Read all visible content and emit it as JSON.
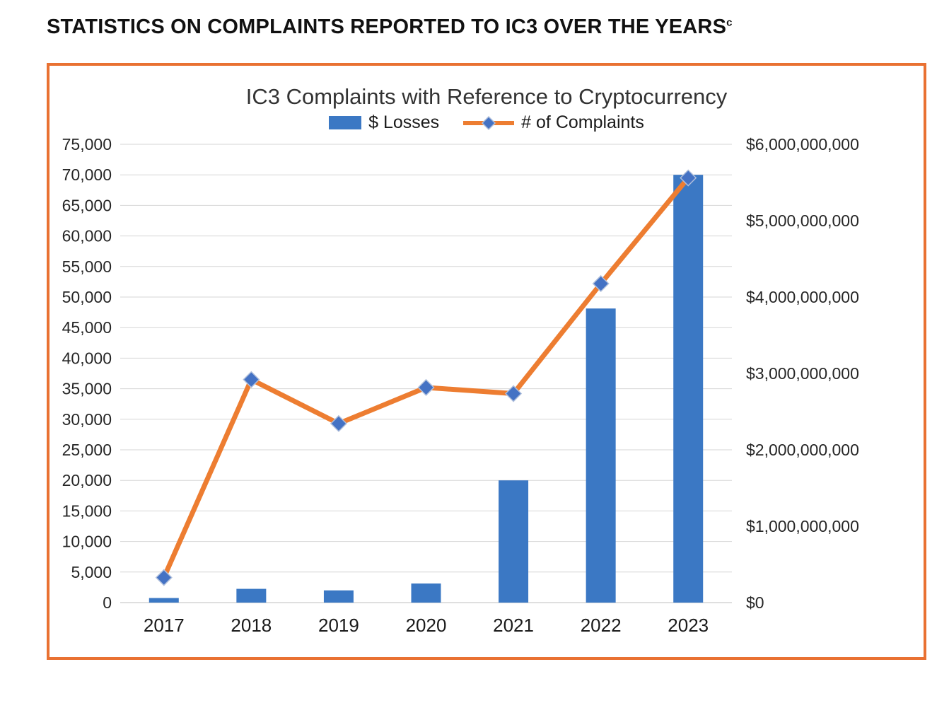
{
  "page": {
    "heading": "STATISTICS ON COMPLAINTS REPORTED TO IC3 OVER THE YEARS",
    "heading_superscript": "c"
  },
  "chart_data": {
    "type": "bar",
    "subtype": "combo-bar-line-dual-axis",
    "title": "IC3 Complaints with Reference to Cryptocurrency",
    "categories": [
      "2017",
      "2018",
      "2019",
      "2020",
      "2021",
      "2022",
      "2023"
    ],
    "series": [
      {
        "name": "$ Losses",
        "type": "bar",
        "axis": "right",
        "values": [
          60000000,
          180000000,
          160000000,
          250000000,
          1600000000,
          3850000000,
          5600000000
        ]
      },
      {
        "name": "# of Complaints",
        "type": "line",
        "axis": "left",
        "values": [
          4100,
          36500,
          29300,
          35200,
          34200,
          52200,
          69500
        ]
      }
    ],
    "left_axis": {
      "min": 0,
      "max": 75000,
      "step": 5000,
      "format": "number-comma"
    },
    "right_axis": {
      "min": 0,
      "max": 6000000000,
      "step": 1000000000,
      "format": "currency-dollar"
    },
    "grid": true,
    "legend_position": "top"
  },
  "colors": {
    "frame_border": "#E97132",
    "bar": "#3B78C4",
    "line": "#ED7D31",
    "marker_fill": "#4472C4",
    "marker_edge": "#aebedb",
    "grid": "#D6D6D6",
    "axis_text": "#262626"
  }
}
